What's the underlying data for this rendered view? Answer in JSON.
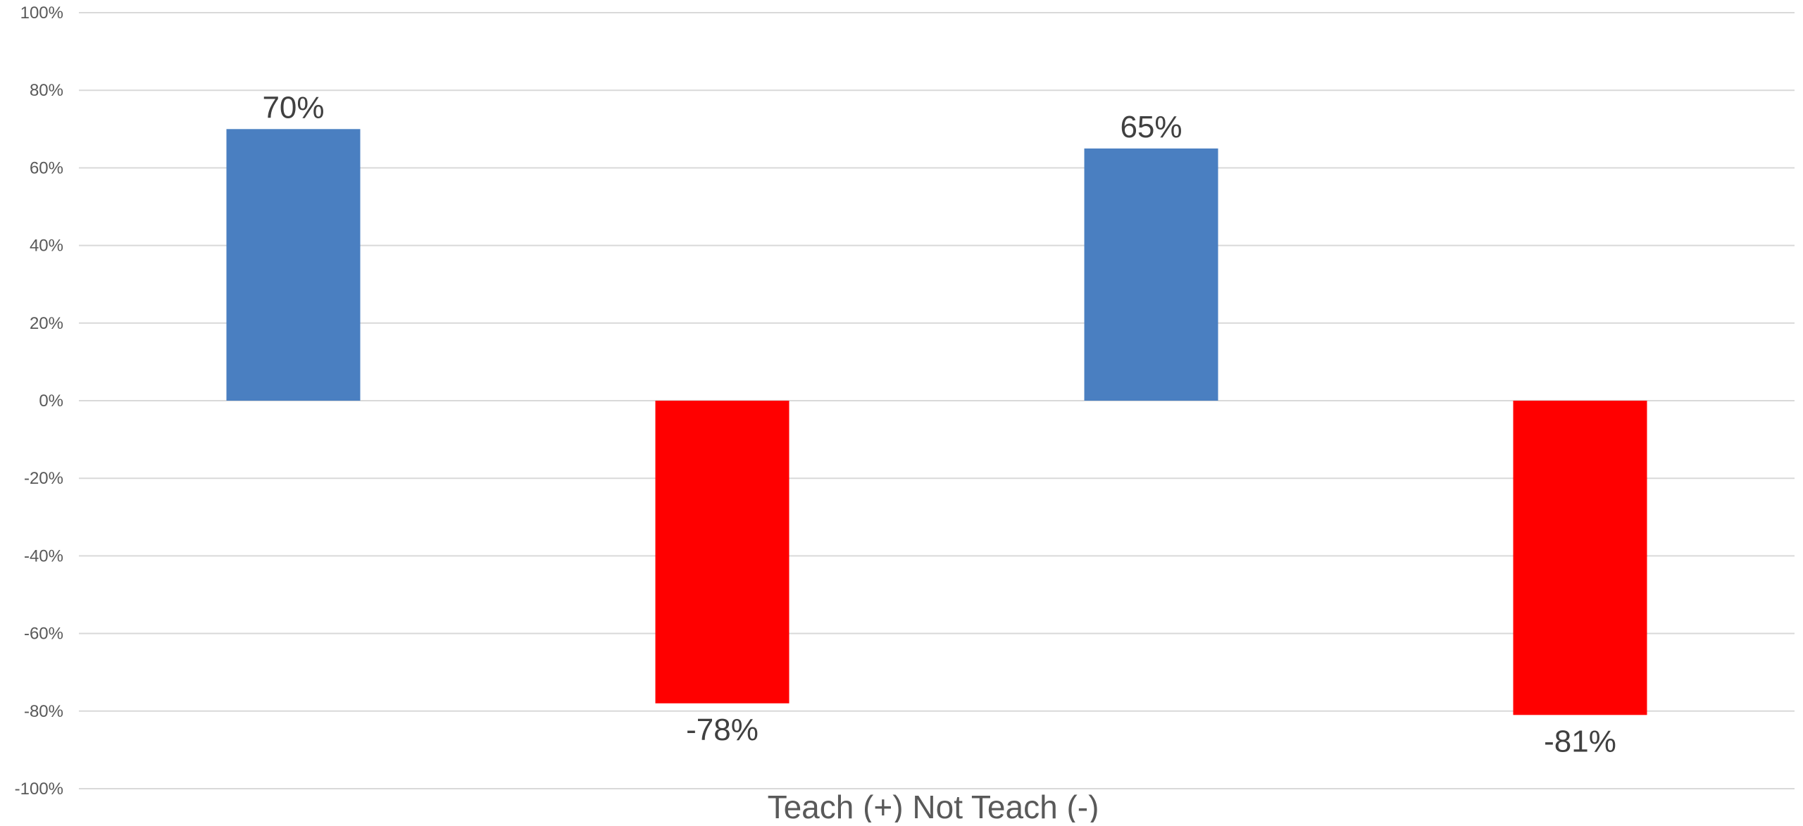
{
  "chart_data": {
    "type": "bar",
    "title": "",
    "xlabel": "Teach (+) Not Teach (-)",
    "ylabel": "",
    "ylim": [
      -100,
      100
    ],
    "y_ticks": [
      100,
      80,
      60,
      40,
      20,
      0,
      -20,
      -40,
      -60,
      -80,
      -100
    ],
    "y_tick_labels": [
      "100%",
      "80%",
      "60%",
      "40%",
      "20%",
      "0%",
      "-20%",
      "-40%",
      "-60%",
      "-80%",
      "-100%"
    ],
    "grid": true,
    "legend": "none",
    "categories": [
      "",
      "",
      "",
      ""
    ],
    "values": [
      70,
      -78,
      65,
      -81
    ],
    "data_labels": [
      "70%",
      "-78%",
      "65%",
      "-81%"
    ],
    "colors": [
      "#4a7fc1",
      "#ff0000",
      "#4a7fc1",
      "#ff0000"
    ]
  }
}
